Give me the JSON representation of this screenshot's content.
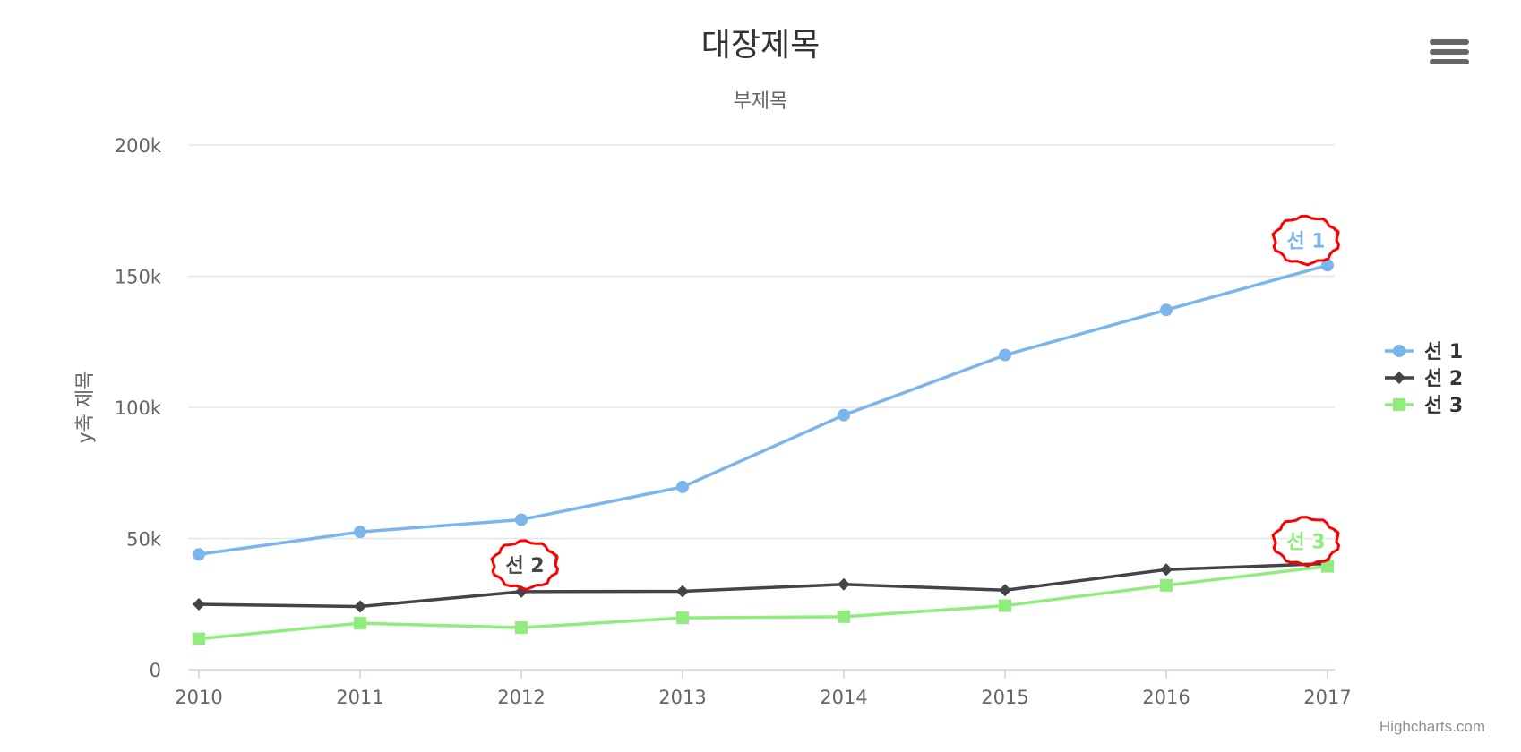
{
  "chart_data": {
    "type": "line",
    "title": "대장제목",
    "subtitle": "부제목",
    "xlabel": "",
    "ylabel": "y축 제목",
    "categories": [
      "2010",
      "2011",
      "2012",
      "2013",
      "2014",
      "2015",
      "2016",
      "2017"
    ],
    "ylim": [
      0,
      200000
    ],
    "y_ticks": [
      0,
      50000,
      100000,
      150000,
      200000
    ],
    "y_tick_labels": [
      "0",
      "50k",
      "100k",
      "150k",
      "200k"
    ],
    "grid": true,
    "legend_position": "right",
    "series": [
      {
        "name": "선 1",
        "color": "#7cb5ec",
        "marker": "circle",
        "values": [
          43934,
          52503,
          57177,
          69658,
          97031,
          119931,
          137133,
          154175
        ],
        "end_label": "선 1",
        "end_label_index": 7
      },
      {
        "name": "선 2",
        "color": "#434348",
        "marker": "diamond",
        "values": [
          24916,
          24064,
          29742,
          29851,
          32490,
          30282,
          38121,
          40434
        ],
        "end_label": "선 2",
        "end_label_index": 2
      },
      {
        "name": "선 3",
        "color": "#90ed7d",
        "marker": "square",
        "values": [
          11744,
          17722,
          16005,
          19771,
          20185,
          24377,
          32147,
          39387
        ],
        "end_label": "선 3",
        "end_label_index": 7
      }
    ],
    "annotations": [
      {
        "type": "hand-drawn-circle",
        "color": "#ff0000",
        "target": "선 1"
      },
      {
        "type": "hand-drawn-circle",
        "color": "#ff0000",
        "target": "선 2"
      },
      {
        "type": "hand-drawn-circle",
        "color": "#ff0000",
        "target": "선 3"
      }
    ]
  },
  "menu_icon": "hamburger-menu-icon",
  "credits": "Highcharts.com"
}
